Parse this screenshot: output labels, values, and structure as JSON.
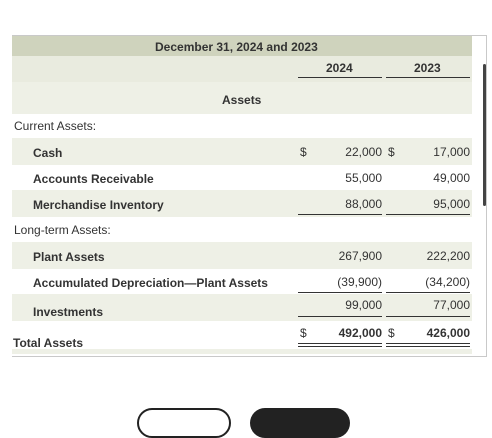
{
  "header": {
    "title": "December 31, 2024 and 2023",
    "year1": "2024",
    "year2": "2023"
  },
  "section_title": "Assets",
  "current_assets_label": "Current Assets:",
  "longterm_assets_label": "Long-term Assets:",
  "rows": {
    "cash": {
      "label": "Cash",
      "sym1": "$",
      "v2024": "22,000",
      "sym2": "$",
      "v2023": "17,000"
    },
    "ar": {
      "label": "Accounts Receivable",
      "v2024": "55,000",
      "v2023": "49,000"
    },
    "inventory": {
      "label": "Merchandise Inventory",
      "v2024": "88,000",
      "v2023": "95,000"
    },
    "plant": {
      "label": "Plant Assets",
      "v2024": "267,900",
      "v2023": "222,200"
    },
    "accdep": {
      "label": "Accumulated Depreciation—Plant Assets",
      "v2024": "(39,900)",
      "v2023": "(34,200)"
    },
    "investments": {
      "label": "Investments",
      "v2024": "99,000",
      "v2023": "77,000"
    },
    "total": {
      "label": "Total Assets",
      "sym1": "$",
      "v2024": "492,000",
      "sym2": "$",
      "v2023": "426,000"
    }
  }
}
